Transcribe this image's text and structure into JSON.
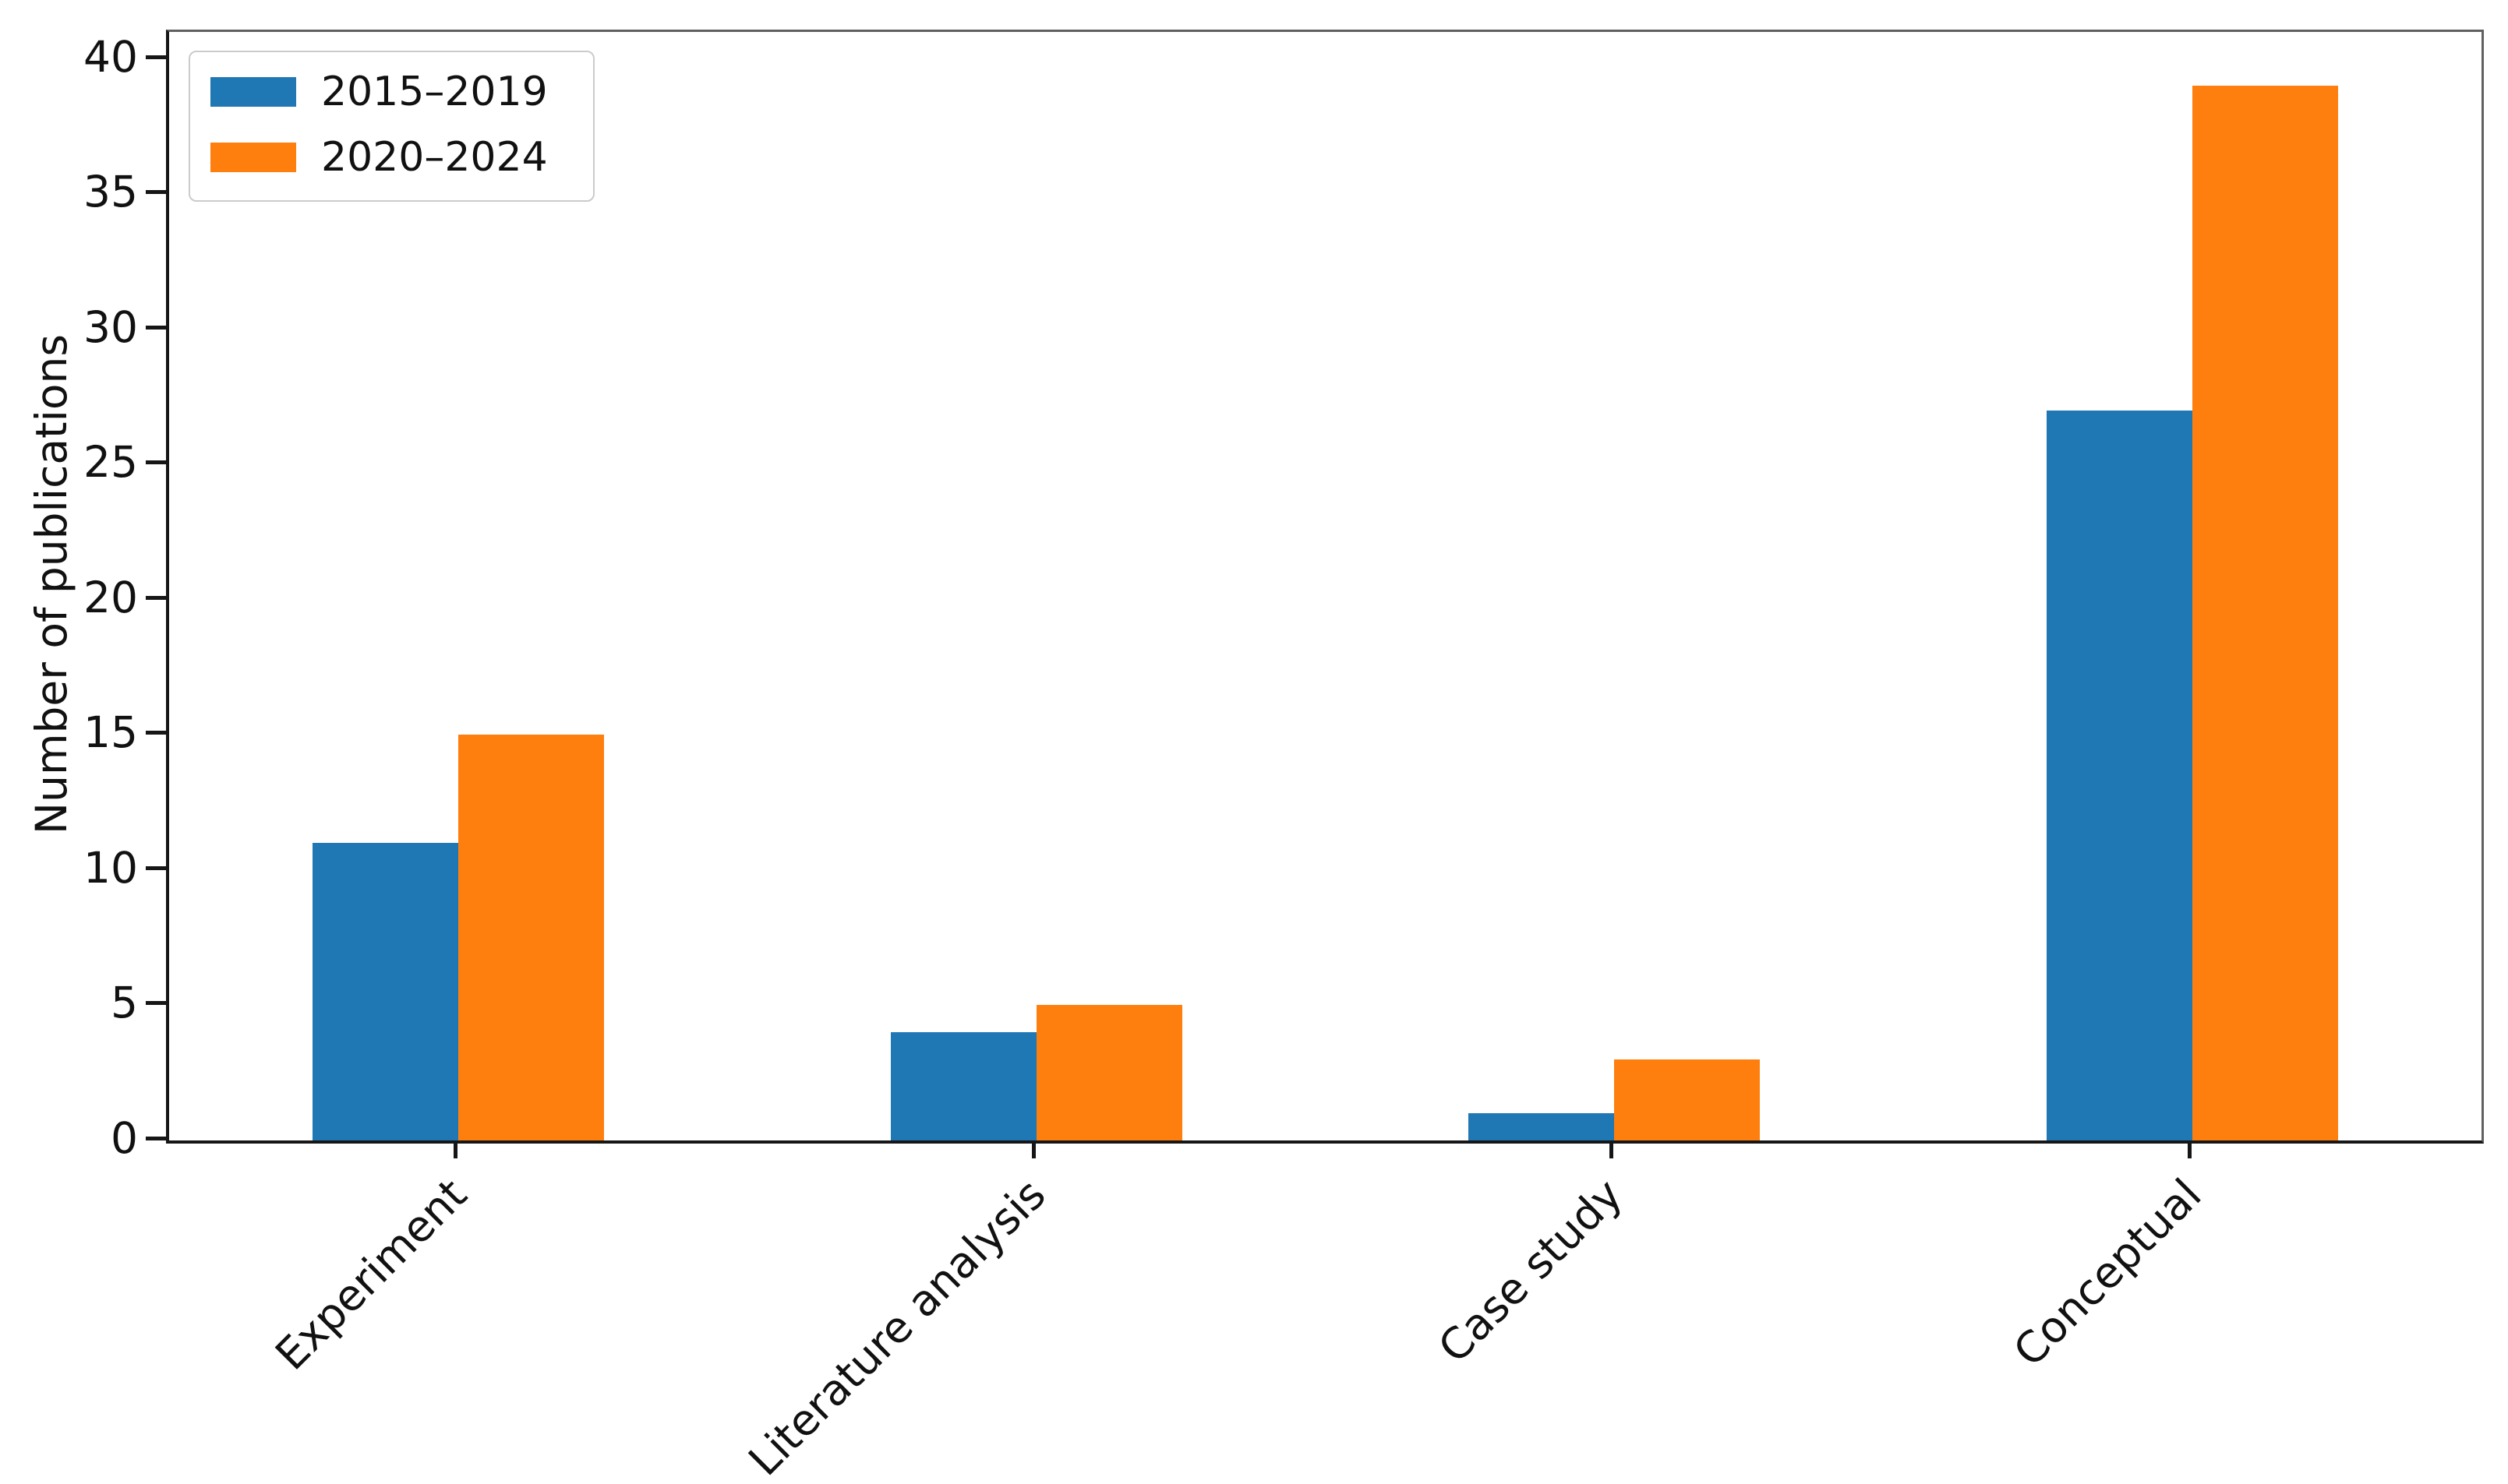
{
  "figure": {
    "background": "#ffffff"
  },
  "chart_data": {
    "type": "bar",
    "title": "",
    "categories": [
      "Experiment",
      "Literature analysis",
      "Case study",
      "Conceptual"
    ],
    "series": [
      {
        "name": "2015–2019",
        "color": "#1f77b4",
        "values": [
          11,
          4,
          1,
          27
        ]
      },
      {
        "name": "2020–2024",
        "color": "#ff7f0e",
        "values": [
          15,
          5,
          3,
          39
        ]
      }
    ],
    "xlabel": "",
    "ylabel": "Number of publications",
    "yticks": [
      0,
      5,
      10,
      15,
      20,
      25,
      30,
      35,
      40
    ],
    "ylim": [
      0,
      41
    ],
    "grid": false,
    "legend_position": "upper-left",
    "xtick_rotation": 45,
    "bar_width_frac": 0.063
  }
}
